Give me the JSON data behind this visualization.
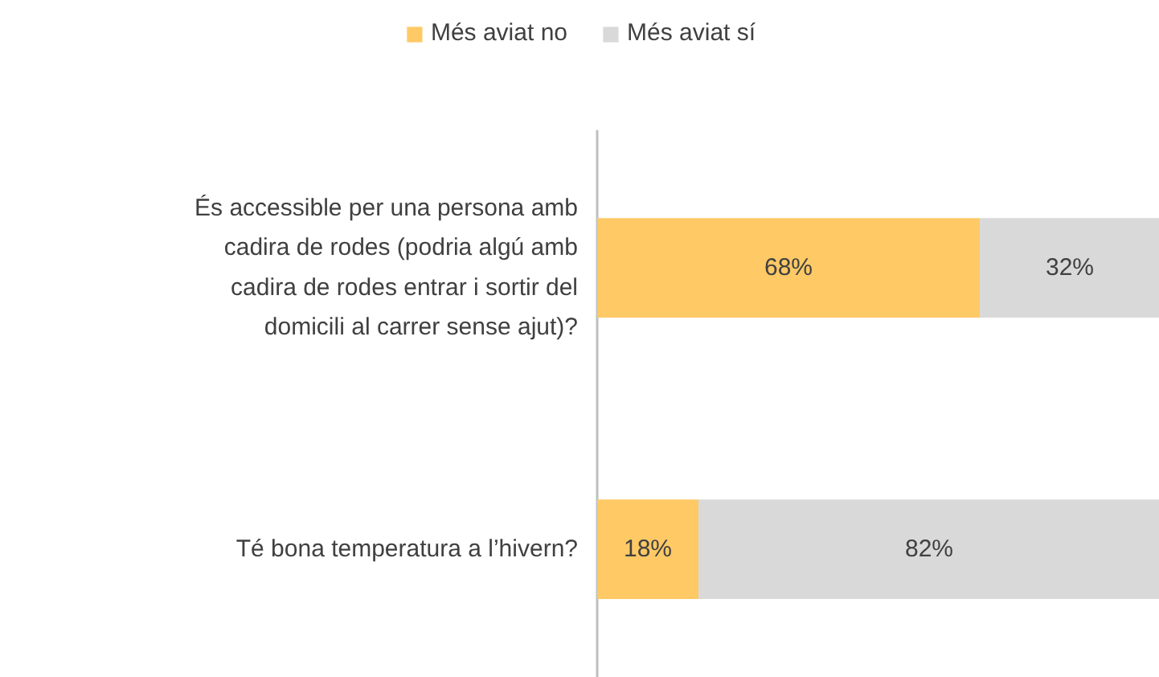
{
  "chart_data": {
    "type": "bar",
    "orientation": "horizontal",
    "stacked": true,
    "categories": [
      "És accessible per una persona amb cadira de rodes (podria algú amb cadira de rodes entrar i sortir del domicili al carrer sense ajut)?",
      "Té bona temperatura a l’hivern?"
    ],
    "series": [
      {
        "name": "Més aviat no",
        "color": "#ffc966",
        "values": [
          68,
          18
        ],
        "value_labels": [
          "68%",
          "18%"
        ]
      },
      {
        "name": "Més aviat sí",
        "color": "#d9d9d9",
        "values": [
          32,
          82
        ],
        "value_labels": [
          "32%",
          "82%"
        ]
      }
    ],
    "legend": "top",
    "grid": false
  }
}
